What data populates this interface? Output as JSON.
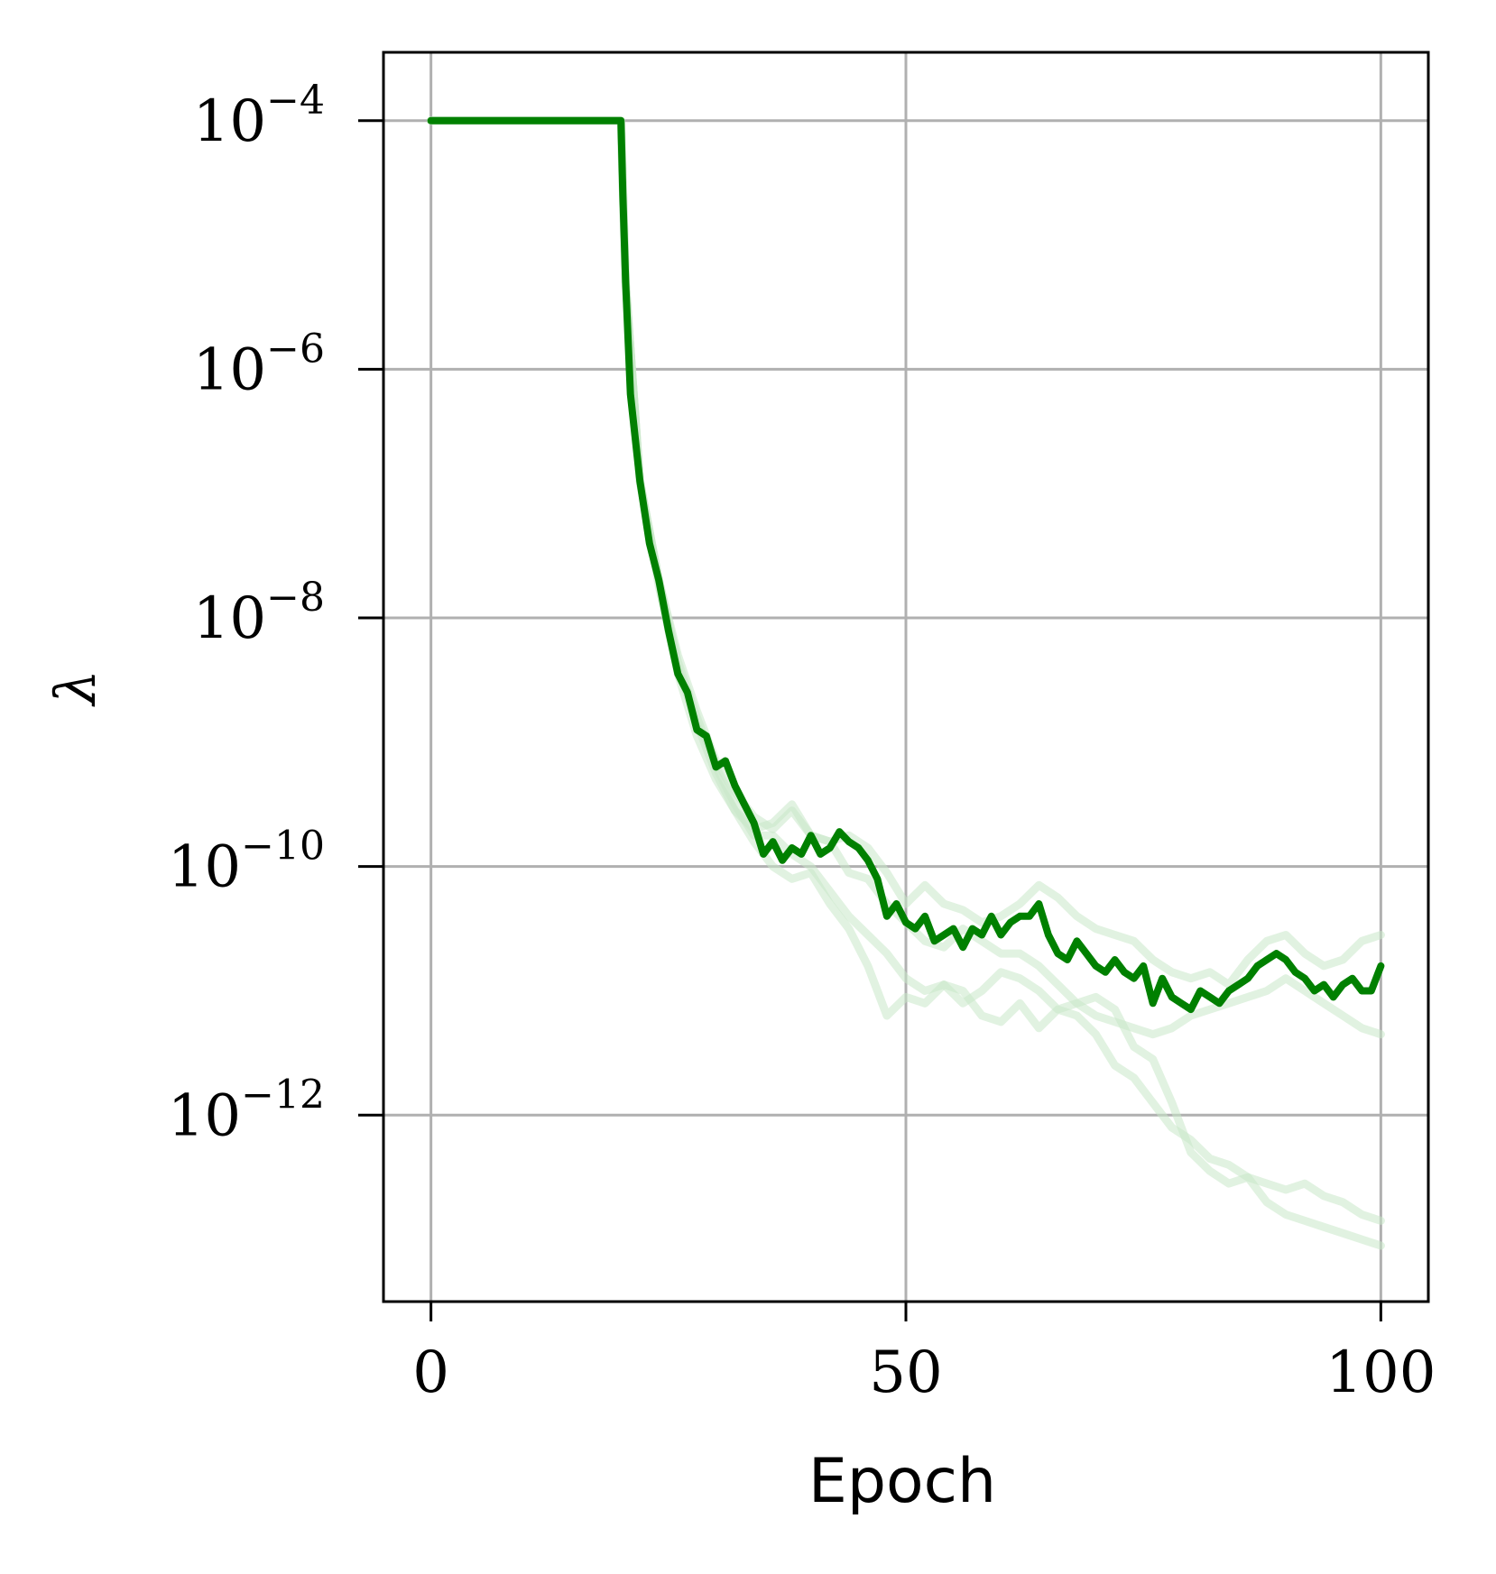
{
  "chart_data": {
    "type": "line",
    "title": "",
    "xlabel": "Epoch",
    "ylabel": "λ",
    "xlim": [
      -5,
      105
    ],
    "ylim_log10": [
      -13.5,
      -3.45
    ],
    "yscale": "log",
    "grid": true,
    "x_ticks": [
      {
        "value": 0,
        "label": "0"
      },
      {
        "value": 50,
        "label": "50"
      },
      {
        "value": 100,
        "label": "100"
      }
    ],
    "y_ticks": [
      {
        "value": -4,
        "base": "10",
        "exp": "−4"
      },
      {
        "value": -6,
        "base": "10",
        "exp": "−6"
      },
      {
        "value": -8,
        "base": "10",
        "exp": "−8"
      },
      {
        "value": -10,
        "base": "10",
        "exp": "−10"
      },
      {
        "value": -12,
        "base": "10",
        "exp": "−12"
      }
    ],
    "colors": {
      "main": "#008000",
      "faint": "#c8e8c8",
      "grid": "#b0b0b0",
      "axis": "#000000"
    },
    "main_series": {
      "x": [
        0,
        10,
        20,
        20.2,
        20.5,
        21,
        22,
        23,
        24,
        25,
        26,
        27,
        28,
        29,
        30,
        31,
        32,
        33,
        34,
        35,
        36,
        37,
        38,
        39,
        40,
        41,
        42,
        43,
        44,
        45,
        46,
        47,
        48,
        49,
        50,
        51,
        52,
        53,
        54,
        55,
        56,
        57,
        58,
        59,
        60,
        61,
        62,
        63,
        64,
        65,
        66,
        67,
        68,
        69,
        70,
        71,
        72,
        73,
        74,
        75,
        76,
        77,
        78,
        79,
        80,
        81,
        82,
        83,
        84,
        85,
        86,
        87,
        88,
        89,
        90,
        91,
        92,
        93,
        94,
        95,
        96,
        97,
        98,
        99,
        100
      ],
      "y_log10": [
        -4,
        -4,
        -4,
        -4.6,
        -5.3,
        -6.2,
        -6.9,
        -7.4,
        -7.7,
        -8.1,
        -8.45,
        -8.6,
        -8.9,
        -8.95,
        -9.2,
        -9.15,
        -9.35,
        -9.5,
        -9.65,
        -9.9,
        -9.8,
        -9.95,
        -9.85,
        -9.9,
        -9.75,
        -9.9,
        -9.85,
        -9.72,
        -9.8,
        -9.85,
        -9.95,
        -10.1,
        -10.4,
        -10.3,
        -10.45,
        -10.5,
        -10.4,
        -10.6,
        -10.55,
        -10.5,
        -10.65,
        -10.5,
        -10.55,
        -10.4,
        -10.55,
        -10.45,
        -10.4,
        -10.4,
        -10.3,
        -10.55,
        -10.7,
        -10.75,
        -10.6,
        -10.7,
        -10.8,
        -10.85,
        -10.75,
        -10.85,
        -10.9,
        -10.8,
        -11.1,
        -10.9,
        -11.05,
        -11.1,
        -11.15,
        -11.0,
        -11.05,
        -11.1,
        -11.0,
        -10.95,
        -10.9,
        -10.8,
        -10.75,
        -10.7,
        -10.75,
        -10.85,
        -10.9,
        -11.0,
        -10.95,
        -11.05,
        -10.95,
        -10.9,
        -11.0,
        -11.0,
        -10.8
      ]
    },
    "faint_series": [
      {
        "x": [
          0,
          20,
          20.5,
          22,
          24,
          26,
          28,
          30,
          32,
          34,
          36,
          38,
          40,
          42,
          44,
          46,
          48,
          50,
          52,
          54,
          56,
          58,
          60,
          62,
          64,
          66,
          68,
          70,
          72,
          74,
          76,
          78,
          80,
          82,
          84,
          86,
          88,
          90,
          92,
          94,
          96,
          98,
          100
        ],
        "y_log10": [
          -4,
          -4,
          -5.3,
          -6.9,
          -7.75,
          -8.45,
          -8.95,
          -9.3,
          -9.55,
          -9.7,
          -9.65,
          -9.5,
          -9.75,
          -9.8,
          -10.05,
          -10.1,
          -10.3,
          -10.45,
          -10.6,
          -10.65,
          -10.5,
          -10.6,
          -10.7,
          -10.7,
          -10.8,
          -10.95,
          -11.1,
          -11.05,
          -11.15,
          -11.45,
          -11.55,
          -11.9,
          -12.3,
          -12.45,
          -12.55,
          -12.5,
          -12.7,
          -12.8,
          -12.85,
          -12.9,
          -12.95,
          -13.0,
          -13.05
        ]
      },
      {
        "x": [
          0,
          20,
          20.5,
          22,
          24,
          26,
          28,
          30,
          32,
          34,
          36,
          38,
          40,
          42,
          44,
          46,
          48,
          50,
          52,
          54,
          56,
          58,
          60,
          62,
          64,
          66,
          68,
          70,
          72,
          74,
          76,
          78,
          80,
          82,
          84,
          86,
          88,
          90,
          92,
          94,
          96,
          98,
          100
        ],
        "y_log10": [
          -4,
          -4,
          -5.3,
          -6.9,
          -7.7,
          -8.4,
          -8.85,
          -9.25,
          -9.55,
          -9.8,
          -10.0,
          -10.1,
          -10.05,
          -10.3,
          -10.5,
          -10.8,
          -11.2,
          -11.05,
          -11.1,
          -10.95,
          -11.0,
          -11.2,
          -11.25,
          -11.1,
          -11.3,
          -11.15,
          -11.2,
          -11.35,
          -11.6,
          -11.7,
          -11.9,
          -12.1,
          -12.2,
          -12.35,
          -12.4,
          -12.5,
          -12.55,
          -12.6,
          -12.55,
          -12.65,
          -12.7,
          -12.8,
          -12.85
        ]
      },
      {
        "x": [
          0,
          20,
          20.5,
          22,
          24,
          26,
          28,
          30,
          32,
          34,
          36,
          38,
          40,
          42,
          44,
          46,
          48,
          50,
          52,
          54,
          56,
          58,
          60,
          62,
          64,
          66,
          68,
          70,
          72,
          74,
          76,
          78,
          80,
          82,
          84,
          86,
          88,
          90,
          92,
          94,
          96,
          98,
          100
        ],
        "y_log10": [
          -4,
          -4,
          -5.3,
          -6.9,
          -7.7,
          -8.35,
          -8.8,
          -9.2,
          -9.5,
          -9.75,
          -9.75,
          -9.9,
          -10.0,
          -10.2,
          -10.4,
          -10.55,
          -10.7,
          -10.9,
          -11.0,
          -10.95,
          -11.1,
          -11.0,
          -10.85,
          -10.9,
          -11.0,
          -11.15,
          -11.1,
          -11.2,
          -11.25,
          -11.3,
          -11.35,
          -11.3,
          -11.2,
          -11.15,
          -11.1,
          -11.05,
          -11.0,
          -10.9,
          -11.0,
          -11.1,
          -11.2,
          -11.3,
          -11.35
        ]
      },
      {
        "x": [
          0,
          20,
          20.5,
          22,
          24,
          26,
          28,
          30,
          32,
          34,
          36,
          38,
          40,
          42,
          44,
          46,
          48,
          50,
          52,
          54,
          56,
          58,
          60,
          62,
          64,
          66,
          68,
          70,
          72,
          74,
          76,
          78,
          80,
          82,
          84,
          86,
          88,
          90,
          92,
          94,
          96,
          98,
          100
        ],
        "y_log10": [
          -4,
          -4,
          -5.3,
          -6.9,
          -7.7,
          -8.3,
          -8.75,
          -9.15,
          -9.4,
          -9.6,
          -9.7,
          -9.55,
          -9.75,
          -9.8,
          -9.75,
          -9.85,
          -10.05,
          -10.3,
          -10.15,
          -10.3,
          -10.35,
          -10.45,
          -10.4,
          -10.3,
          -10.15,
          -10.25,
          -10.4,
          -10.5,
          -10.55,
          -10.6,
          -10.75,
          -10.85,
          -10.9,
          -10.85,
          -10.95,
          -10.75,
          -10.6,
          -10.55,
          -10.7,
          -10.8,
          -10.75,
          -10.6,
          -10.55
        ]
      }
    ]
  }
}
